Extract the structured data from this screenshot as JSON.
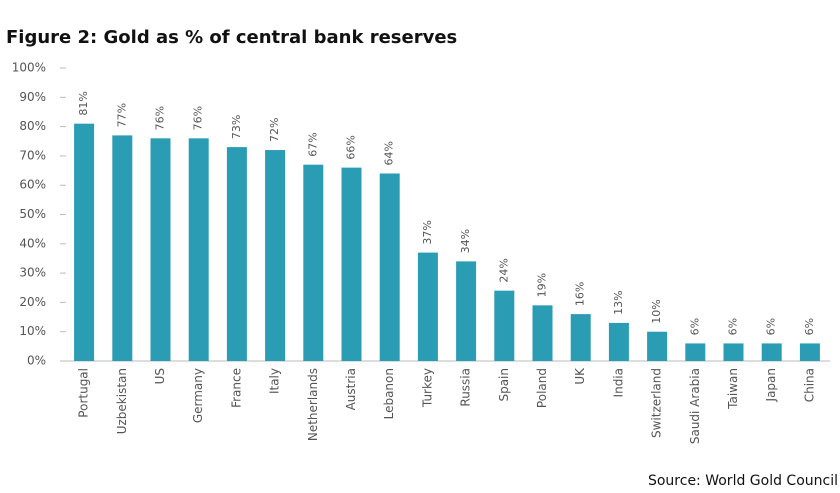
{
  "chart_data": {
    "type": "bar",
    "title": "Figure 2: Gold as % of central bank reserves",
    "source": "Source: World Gold Council",
    "categories": [
      "Portugal",
      "Uzbekistan",
      "US",
      "Germany",
      "France",
      "Italy",
      "Netherlands",
      "Austria",
      "Lebanon",
      "Turkey",
      "Russia",
      "Spain",
      "Poland",
      "UK",
      "India",
      "Switzerland",
      "Saudi Arabia",
      "Taiwan",
      "Japan",
      "China"
    ],
    "values": [
      81,
      77,
      76,
      76,
      73,
      72,
      67,
      66,
      64,
      37,
      34,
      24,
      19,
      16,
      13,
      10,
      6,
      6,
      6,
      6
    ],
    "value_labels": [
      "81%",
      "77%",
      "76%",
      "76%",
      "73%",
      "72%",
      "67%",
      "66%",
      "64%",
      "37%",
      "34%",
      "24%",
      "19%",
      "16%",
      "13%",
      "10%",
      "6%",
      "6%",
      "6%",
      "6%"
    ],
    "color": "#2a9db5",
    "ylim": [
      0,
      100
    ],
    "yticks": [
      {
        "value": 0,
        "label": "0%"
      },
      {
        "value": 10,
        "label": "10%"
      },
      {
        "value": 20,
        "label": "20%"
      },
      {
        "value": 30,
        "label": "30%"
      },
      {
        "value": 40,
        "label": "40%"
      },
      {
        "value": 50,
        "label": "50%"
      },
      {
        "value": 60,
        "label": "60%"
      },
      {
        "value": 70,
        "label": "70%"
      },
      {
        "value": 80,
        "label": "80%"
      },
      {
        "value": 90,
        "label": "90%"
      },
      {
        "value": 100,
        "label": "100%"
      }
    ],
    "grid": false
  }
}
